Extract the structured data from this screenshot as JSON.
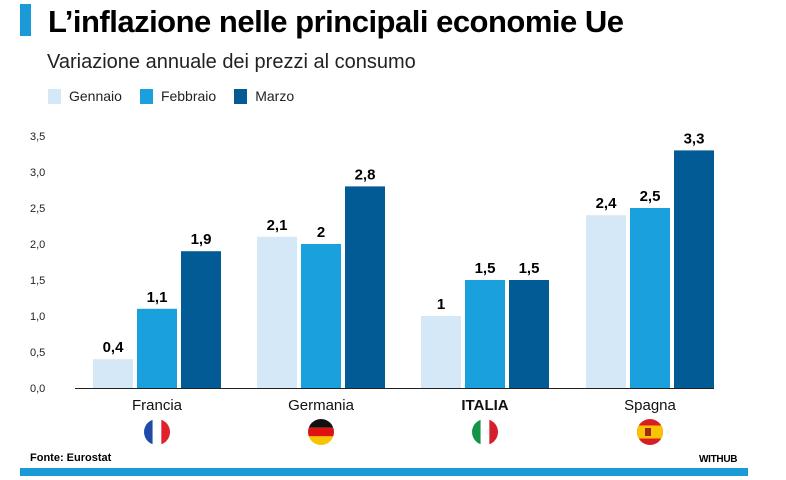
{
  "header": {
    "title": "L’inflazione nelle principali economie Ue",
    "subtitle": "Variazione annuale dei prezzi al consumo"
  },
  "chart_data": {
    "type": "bar",
    "categories": [
      "Francia",
      "Germania",
      "ITALIA",
      "Spagna"
    ],
    "series": [
      {
        "name": "Gennaio",
        "values": [
          0.4,
          2.1,
          1,
          2.4
        ],
        "labels": [
          "0,4",
          "2,1",
          "1",
          "2,4"
        ],
        "color": "#d5e8f7"
      },
      {
        "name": "Febbraio",
        "values": [
          1.1,
          2,
          1.5,
          2.5
        ],
        "labels": [
          "1,1",
          "2",
          "1,5",
          "2,5"
        ],
        "color": "#1aa0dc"
      },
      {
        "name": "Marzo",
        "values": [
          1.9,
          2.8,
          1.5,
          3.3
        ],
        "labels": [
          "1,9",
          "2,8",
          "1,5",
          "3,3"
        ],
        "color": "#035b95"
      }
    ],
    "yticks": [
      "0,0",
      "0,5",
      "1,0",
      "1,5",
      "2,0",
      "2,5",
      "3,0",
      "3,5"
    ],
    "ylim": [
      0,
      3.5
    ],
    "grid": false,
    "legend_position": "top-left",
    "flags": [
      "france-flag-icon",
      "germany-flag-icon",
      "italy-flag-icon",
      "spain-flag-icon"
    ],
    "highlighted_category": "ITALIA"
  },
  "footer": {
    "source": "Fonte: Eurostat",
    "brand": "WITHUB"
  },
  "colors": {
    "accent": "#1a9ad6"
  }
}
